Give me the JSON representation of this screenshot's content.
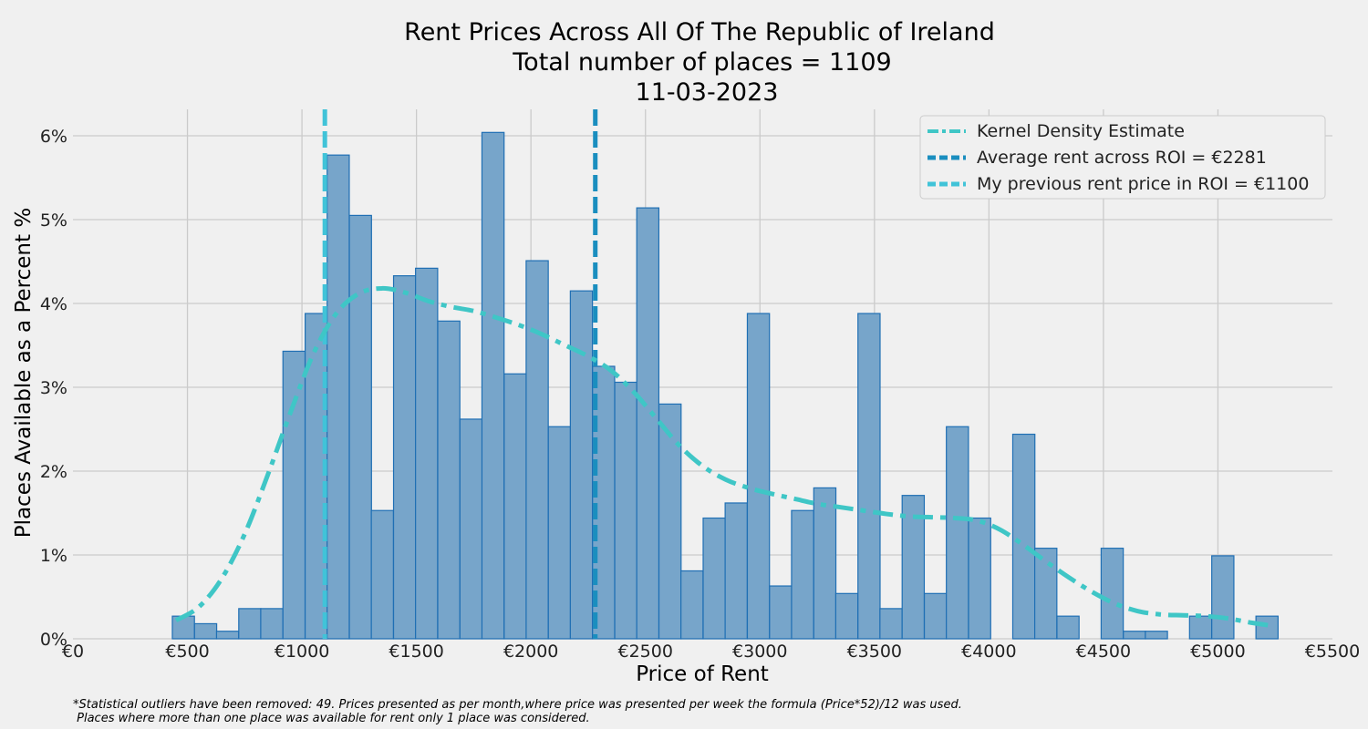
{
  "chart_data": {
    "type": "bar",
    "title_lines": [
      "Rent Prices Across All Of The Republic of Ireland",
      "Total number of places = 1109",
      "11-03-2023"
    ],
    "xlabel": "Price of Rent",
    "ylabel": "Places Available as a Percent %",
    "xlim": [
      0,
      5500
    ],
    "ylim": [
      0,
      6.3
    ],
    "x_ticks": [
      0,
      500,
      1000,
      1500,
      2000,
      2500,
      3000,
      3500,
      4000,
      4500,
      5000,
      5500
    ],
    "x_tick_labels": [
      "€0",
      "€500",
      "€1000",
      "€1500",
      "€2000",
      "€2500",
      "€3000",
      "€3500",
      "€4000",
      "€4500",
      "€5000",
      "€5500"
    ],
    "y_ticks": [
      0,
      1,
      2,
      3,
      4,
      5,
      6
    ],
    "y_tick_labels": [
      "0%",
      "1%",
      "2%",
      "3%",
      "4%",
      "5%",
      "6%"
    ],
    "grid": true,
    "legend_position": "top-right",
    "bin_width": 96.6,
    "histogram": [
      {
        "x": 434,
        "value": 0.27
      },
      {
        "x": 531,
        "value": 0.18
      },
      {
        "x": 627,
        "value": 0.09
      },
      {
        "x": 724,
        "value": 0.36
      },
      {
        "x": 820,
        "value": 0.36
      },
      {
        "x": 917,
        "value": 3.43
      },
      {
        "x": 1014,
        "value": 3.88
      },
      {
        "x": 1110,
        "value": 5.77
      },
      {
        "x": 1207,
        "value": 5.05
      },
      {
        "x": 1303,
        "value": 1.53
      },
      {
        "x": 1400,
        "value": 4.33
      },
      {
        "x": 1496,
        "value": 4.42
      },
      {
        "x": 1593,
        "value": 3.79
      },
      {
        "x": 1690,
        "value": 2.62
      },
      {
        "x": 1786,
        "value": 6.04
      },
      {
        "x": 1883,
        "value": 3.16
      },
      {
        "x": 1979,
        "value": 4.51
      },
      {
        "x": 2076,
        "value": 2.53
      },
      {
        "x": 2172,
        "value": 4.15
      },
      {
        "x": 2269,
        "value": 3.25
      },
      {
        "x": 2366,
        "value": 3.06
      },
      {
        "x": 2462,
        "value": 5.14
      },
      {
        "x": 2559,
        "value": 2.8
      },
      {
        "x": 2655,
        "value": 0.81
      },
      {
        "x": 2752,
        "value": 1.44
      },
      {
        "x": 2848,
        "value": 1.62
      },
      {
        "x": 2945,
        "value": 3.88
      },
      {
        "x": 3042,
        "value": 0.63
      },
      {
        "x": 3138,
        "value": 1.53
      },
      {
        "x": 3235,
        "value": 1.8
      },
      {
        "x": 3331,
        "value": 0.54
      },
      {
        "x": 3428,
        "value": 3.88
      },
      {
        "x": 3524,
        "value": 0.36
      },
      {
        "x": 3621,
        "value": 1.71
      },
      {
        "x": 3718,
        "value": 0.54
      },
      {
        "x": 3814,
        "value": 2.53
      },
      {
        "x": 3911,
        "value": 1.44
      },
      {
        "x": 4104,
        "value": 2.44
      },
      {
        "x": 4200,
        "value": 1.08
      },
      {
        "x": 4297,
        "value": 0.27
      },
      {
        "x": 4490,
        "value": 1.08
      },
      {
        "x": 4587,
        "value": 0.09
      },
      {
        "x": 4683,
        "value": 0.09
      },
      {
        "x": 4876,
        "value": 0.27
      },
      {
        "x": 4973,
        "value": 0.99
      },
      {
        "x": 5166,
        "value": 0.27
      }
    ],
    "kde": {
      "name": "Kernel Density Estimate",
      "x": [
        450,
        550,
        650,
        750,
        850,
        950,
        1050,
        1150,
        1250,
        1350,
        1450,
        1550,
        1650,
        1750,
        1850,
        1950,
        2050,
        2150,
        2250,
        2350,
        2450,
        2550,
        2650,
        2750,
        2850,
        2950,
        3050,
        3150,
        3250,
        3350,
        3450,
        3550,
        3650,
        3750,
        3850,
        3950,
        4050,
        4150,
        4250,
        4350,
        4450,
        4550,
        4650,
        4750,
        4850,
        4950,
        5050,
        5150,
        5250
      ],
      "y": [
        0.22,
        0.38,
        0.72,
        1.25,
        1.95,
        2.7,
        3.4,
        3.88,
        4.12,
        4.18,
        4.13,
        4.03,
        3.96,
        3.91,
        3.83,
        3.74,
        3.63,
        3.5,
        3.37,
        3.2,
        2.94,
        2.62,
        2.3,
        2.06,
        1.9,
        1.8,
        1.73,
        1.67,
        1.61,
        1.57,
        1.53,
        1.49,
        1.46,
        1.45,
        1.44,
        1.41,
        1.3,
        1.12,
        0.92,
        0.73,
        0.56,
        0.42,
        0.33,
        0.29,
        0.28,
        0.27,
        0.24,
        0.19,
        0.15
      ]
    },
    "reference_lines": [
      {
        "name": "Average rent across ROI = €2281",
        "x": 2281,
        "color": "#1a8ebf"
      },
      {
        "name": "My previous rent price in ROI = €1100",
        "x": 1100,
        "color": "#41c3d8"
      }
    ],
    "colors": {
      "bar_fill": "#77a5ca",
      "bar_edge": "#1f6fb4",
      "kde": "#3fc6c6",
      "average_line": "#1a8ebf",
      "previous_line": "#41c3d8",
      "grid": "#cbcbcb",
      "background": "#f0f0f0"
    },
    "footnote_lines": [
      "*Statistical outliers have been removed: 49. Prices presented as per month,where price was presented per week the formula (Price*52)/12 was used.",
      " Places where more than one place was available for rent only 1 place was considered."
    ]
  }
}
